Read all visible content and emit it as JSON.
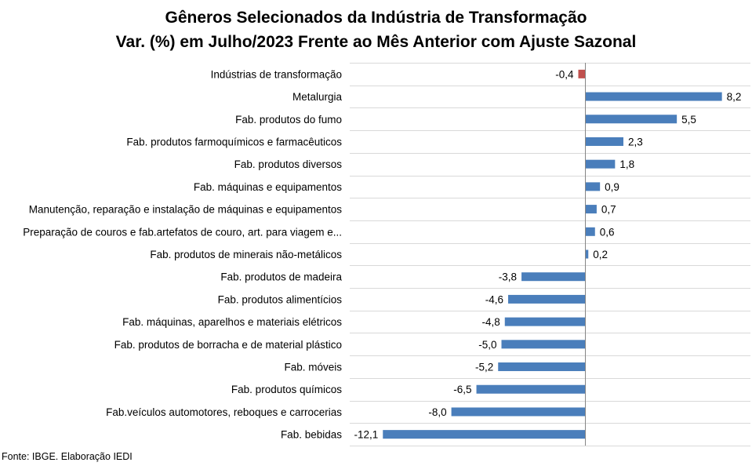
{
  "chart_data": {
    "type": "bar",
    "orientation": "horizontal",
    "title": "Gêneros Selecionados da Indústria de Transformação",
    "subtitle": "Var. (%) em Julho/2023 Frente ao Mês Anterior com Ajuste Sazonal",
    "categories": [
      "Indústrias de transformação",
      "Metalurgia",
      "Fab. produtos do fumo",
      "Fab. produtos farmoquímicos e farmacêuticos",
      "Fab. produtos diversos",
      "Fab. máquinas e equipamentos",
      "Manutenção, reparação e instalação de máquinas e equipamentos",
      "Preparação de couros e fab.artefatos de couro, art. para viagem e...",
      "Fab. produtos de minerais não-metálicos",
      "Fab. produtos de madeira",
      "Fab. produtos alimentícios",
      "Fab. máquinas, aparelhos e materiais elétricos",
      "Fab. produtos de borracha e de material plástico",
      "Fab. móveis",
      "Fab. produtos químicos",
      "Fab.veículos automotores, reboques e carrocerias",
      "Fab. bebidas"
    ],
    "values": [
      -0.4,
      8.2,
      5.5,
      2.3,
      1.8,
      0.9,
      0.7,
      0.6,
      0.2,
      -3.8,
      -4.6,
      -4.8,
      -5.0,
      -5.2,
      -6.5,
      -8.0,
      -12.1
    ],
    "value_labels": [
      "-0,4",
      "8,2",
      "5,5",
      "2,3",
      "1,8",
      "0,9",
      "0,7",
      "0,6",
      "0,2",
      "-3,8",
      "-4,6",
      "-4,8",
      "-5,0",
      "-5,2",
      "-6,5",
      "-8,0",
      "-12,1"
    ],
    "highlight_index": 0,
    "colors": {
      "bar": "#4a7ebb",
      "highlight": "#c0504d",
      "axis": "#868686",
      "grid": "#d9d9d9"
    },
    "grid": true,
    "legend": "none"
  },
  "source": "Fonte: IBGE. Elaboração IEDI"
}
